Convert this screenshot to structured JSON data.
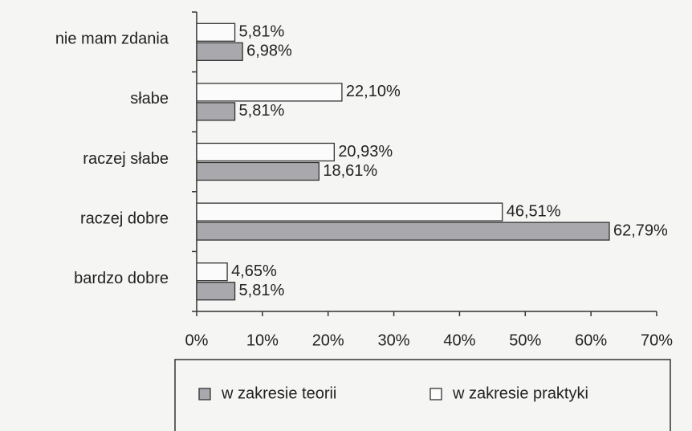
{
  "chart_data": {
    "type": "hbar",
    "categories": [
      "nie mam zdania",
      "słabe",
      "raczej słabe",
      "raczej dobre",
      "bardzo dobre"
    ],
    "series": [
      {
        "name": "w zakresie teorii",
        "color": "#a9a9ad",
        "values": [
          6.98,
          5.81,
          18.61,
          62.79,
          5.81
        ],
        "value_labels": [
          "6,98%",
          "5,81%",
          "18,61%",
          "62,79%",
          "5,81%"
        ]
      },
      {
        "name": "w zakresie praktyki",
        "color": "#fbfbfb",
        "values": [
          5.81,
          22.1,
          20.93,
          46.51,
          4.65
        ],
        "value_labels": [
          "5,81%",
          "22,10%",
          "20,93%",
          "46,51%",
          "4,65%"
        ]
      }
    ],
    "xlim": [
      0,
      70
    ],
    "xticks": [
      {
        "value": 0,
        "label": "0%"
      },
      {
        "value": 10,
        "label": "10%"
      },
      {
        "value": 20,
        "label": "20%"
      },
      {
        "value": 30,
        "label": "30%"
      },
      {
        "value": 40,
        "label": "40%"
      },
      {
        "value": 50,
        "label": "50%"
      },
      {
        "value": 60,
        "label": "60%"
      },
      {
        "value": 70,
        "label": "70%"
      }
    ],
    "legend": "bottom"
  }
}
